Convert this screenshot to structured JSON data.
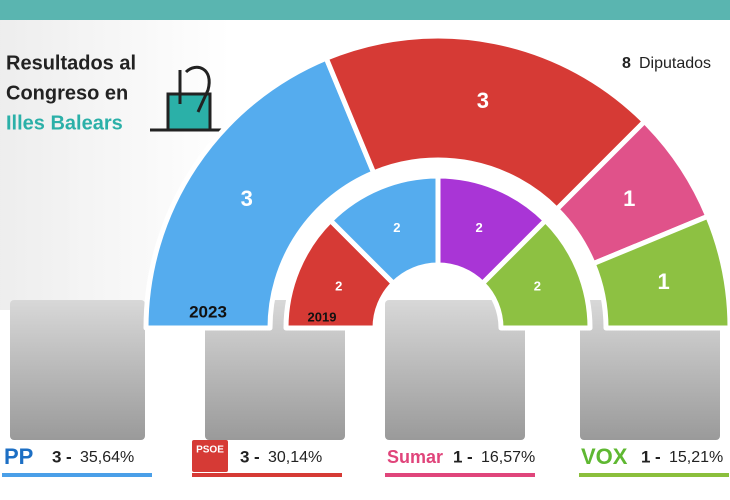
{
  "chart_data": {
    "type": "donut",
    "title": [
      "Resultados al",
      "Congreso en"
    ],
    "subtitle": "Illes Balears",
    "total_seats": 8,
    "total_label": "Diputados",
    "series": [
      {
        "name": "2023",
        "values": [
          3,
          3,
          1,
          1
        ],
        "colors": [
          "#55acee",
          "#d63a35",
          "#e0528a",
          "#8dc142"
        ]
      },
      {
        "name": "2019",
        "values": [
          2,
          2,
          2,
          2
        ],
        "colors": [
          "#d63a35",
          "#55acee",
          "#a935d6",
          "#8dc142"
        ]
      }
    ],
    "categories": [
      "PP",
      "PSOE",
      "Sumar",
      "VOX"
    ],
    "separator": "-",
    "results": {
      "seats": [
        3,
        3,
        1,
        1
      ],
      "percent": [
        35.64,
        30.14,
        16.57,
        15.21
      ],
      "value_labels": [
        "35,64%",
        "30,14%",
        "16,57%",
        "15,21%"
      ],
      "colors": [
        "#4a9fe8",
        "#d63a35",
        "#e0457b",
        "#8bbf3c"
      ]
    }
  }
}
